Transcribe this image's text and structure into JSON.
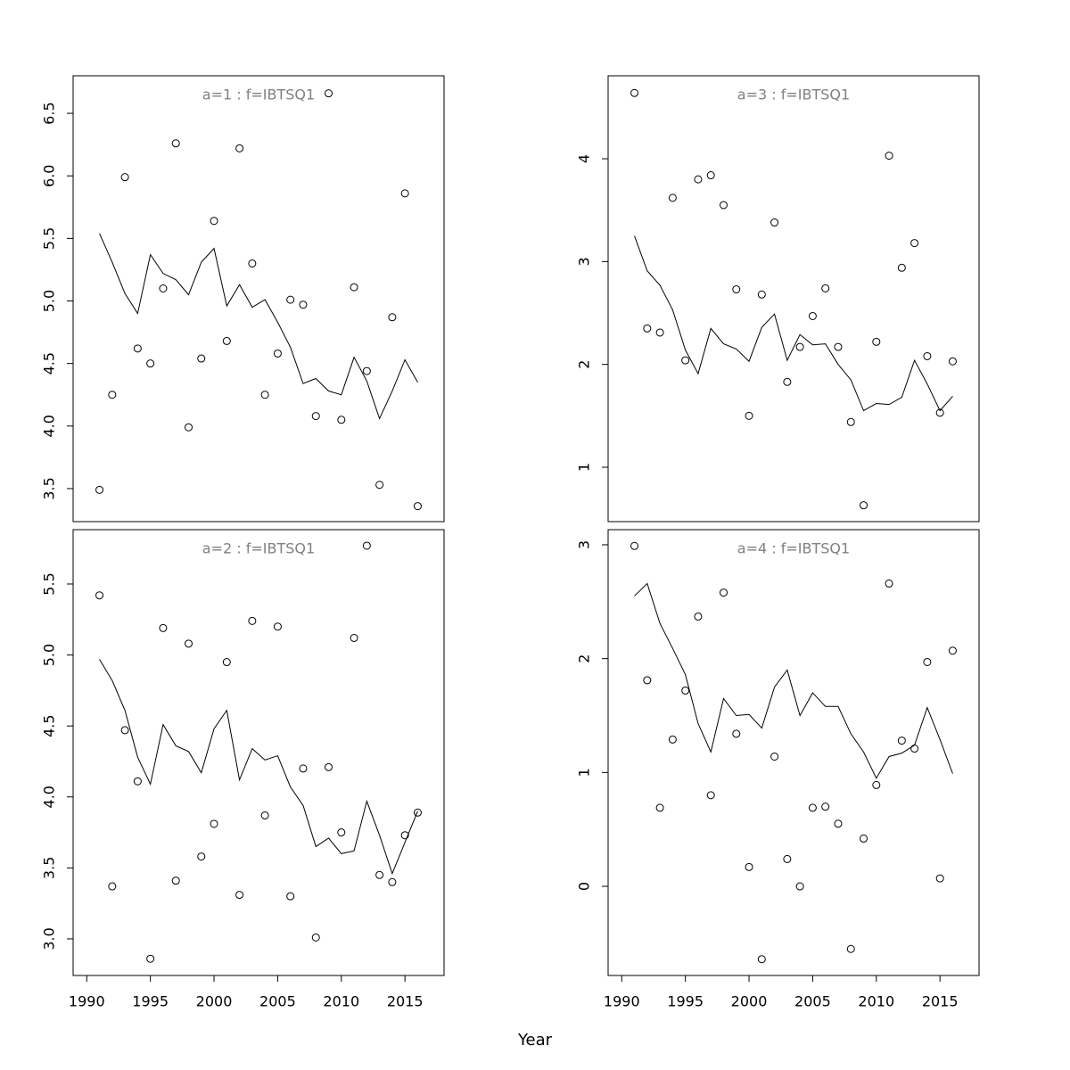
{
  "xlabel": "Year",
  "chart_data": [
    {
      "type": "scatter",
      "title": "a=1  :  f=IBTSQ1",
      "x": [
        1991,
        1992,
        1993,
        1994,
        1995,
        1996,
        1997,
        1998,
        1999,
        2000,
        2001,
        2002,
        2003,
        2004,
        2005,
        2006,
        2007,
        2008,
        2009,
        2010,
        2011,
        2012,
        2013,
        2014,
        2015,
        2016
      ],
      "series": [
        {
          "style": "points",
          "color": "#000000",
          "values": [
            3.49,
            4.25,
            5.99,
            4.62,
            4.5,
            5.1,
            6.26,
            3.99,
            4.54,
            5.64,
            4.68,
            6.22,
            5.3,
            4.25,
            4.58,
            5.01,
            4.97,
            4.08,
            6.66,
            4.05,
            5.11,
            4.44,
            3.53,
            4.87,
            5.86,
            3.36
          ]
        },
        {
          "style": "line",
          "color": "#000000",
          "values": [
            5.54,
            5.31,
            5.06,
            4.9,
            5.37,
            5.22,
            5.17,
            5.05,
            5.31,
            5.42,
            4.96,
            5.13,
            4.95,
            5.01,
            4.83,
            4.63,
            4.34,
            4.38,
            4.28,
            4.25,
            4.55,
            4.36,
            4.06,
            4.28,
            4.53,
            4.35
          ]
        }
      ],
      "xlim": [
        1988.93,
        2018.07
      ],
      "ylim": [
        3.236,
        6.8
      ],
      "yticks": [
        3.5,
        {
          "value": 4,
          "label": "4.0"
        },
        4.5,
        {
          "value": 5,
          "label": "5.0"
        },
        5.5,
        {
          "value": 6,
          "label": "6.0"
        },
        6.5
      ]
    },
    {
      "type": "scatter",
      "title": "a=2  :  f=IBTSQ1",
      "x": [
        1991,
        1992,
        1993,
        1994,
        1995,
        1996,
        1997,
        1998,
        1999,
        2000,
        2001,
        2002,
        2003,
        2004,
        2005,
        2006,
        2007,
        2008,
        2009,
        2010,
        2011,
        2012,
        2013,
        2014,
        2015,
        2016
      ],
      "series": [
        {
          "style": "points",
          "color": "#000000",
          "values": [
            5.42,
            3.37,
            4.47,
            4.11,
            2.86,
            5.19,
            3.41,
            5.08,
            3.58,
            3.81,
            4.95,
            3.31,
            5.24,
            3.87,
            5.2,
            3.3,
            4.2,
            3.01,
            4.21,
            3.75,
            5.12,
            5.77,
            3.45,
            3.4,
            3.73,
            3.89
          ]
        },
        {
          "style": "line",
          "color": "#000000",
          "values": [
            4.97,
            4.82,
            4.61,
            4.28,
            4.09,
            4.51,
            4.36,
            4.32,
            4.17,
            4.48,
            4.61,
            4.12,
            4.34,
            4.26,
            4.29,
            4.07,
            3.94,
            3.65,
            3.71,
            3.6,
            3.62,
            3.97,
            3.73,
            3.46,
            3.68,
            3.9
          ]
        }
      ],
      "xlim": [
        1988.93,
        2018.07
      ],
      "ylim": [
        2.742,
        5.883
      ],
      "xticks": [
        1990,
        1995,
        2000,
        2005,
        2010,
        2015
      ],
      "yticks": [
        {
          "value": 3,
          "label": "3.0"
        },
        3.5,
        {
          "value": 4,
          "label": "4.0"
        },
        4.5,
        {
          "value": 5,
          "label": "5.0"
        },
        5.5
      ]
    },
    {
      "type": "scatter",
      "title": "a=3  :  f=IBTSQ1",
      "x": [
        1991,
        1992,
        1993,
        1994,
        1995,
        1996,
        1997,
        1998,
        1999,
        2000,
        2001,
        2002,
        2003,
        2004,
        2005,
        2006,
        2007,
        2008,
        2009,
        2010,
        2011,
        2012,
        2013,
        2014,
        2015,
        2016
      ],
      "series": [
        {
          "style": "points",
          "color": "#000000",
          "values": [
            4.64,
            2.35,
            2.31,
            3.62,
            2.04,
            3.8,
            3.84,
            3.55,
            2.73,
            1.5,
            2.68,
            3.38,
            1.83,
            2.17,
            2.47,
            2.74,
            2.17,
            1.44,
            0.63,
            2.22,
            4.03,
            2.94,
            3.18,
            2.08,
            1.53,
            2.03
          ]
        },
        {
          "style": "line",
          "color": "#000000",
          "values": [
            3.25,
            2.91,
            2.77,
            2.53,
            2.14,
            1.91,
            2.35,
            2.2,
            2.15,
            2.03,
            2.36,
            2.49,
            2.04,
            2.29,
            2.19,
            2.2,
            2.0,
            1.85,
            1.55,
            1.62,
            1.61,
            1.68,
            2.04,
            1.81,
            1.55,
            1.69
          ]
        }
      ],
      "xlim": [
        1988.93,
        2018.07
      ],
      "ylim": [
        0.471,
        4.807
      ],
      "yticks": [
        1,
        2,
        3,
        4
      ]
    },
    {
      "type": "scatter",
      "title": "a=4  :  f=IBTSQ1",
      "x": [
        1991,
        1992,
        1993,
        1994,
        1995,
        1996,
        1997,
        1998,
        1999,
        2000,
        2001,
        2002,
        2003,
        2004,
        2005,
        2006,
        2007,
        2008,
        2009,
        2010,
        2011,
        2012,
        2013,
        2014,
        2015,
        2016
      ],
      "series": [
        {
          "style": "points",
          "color": "#000000",
          "values": [
            2.99,
            1.81,
            0.69,
            1.29,
            1.72,
            2.37,
            0.8,
            2.58,
            1.34,
            0.17,
            -0.64,
            1.14,
            0.24,
            0.0,
            0.69,
            0.7,
            0.55,
            -0.55,
            0.42,
            0.89,
            2.66,
            1.28,
            1.21,
            1.97,
            0.07,
            2.07
          ]
        },
        {
          "style": "line",
          "color": "#000000",
          "values": [
            2.55,
            2.66,
            2.31,
            2.09,
            1.86,
            1.43,
            1.18,
            1.65,
            1.5,
            1.51,
            1.39,
            1.75,
            1.9,
            1.5,
            1.7,
            1.58,
            1.58,
            1.34,
            1.18,
            0.95,
            1.14,
            1.17,
            1.24,
            1.57,
            1.29,
            0.99
          ]
        }
      ],
      "xlim": [
        1988.93,
        2018.07
      ],
      "ylim": [
        -0.783,
        3.133
      ],
      "xticks": [
        1990,
        1995,
        2000,
        2005,
        2010,
        2015
      ],
      "yticks": [
        0,
        1,
        2,
        3
      ]
    }
  ]
}
